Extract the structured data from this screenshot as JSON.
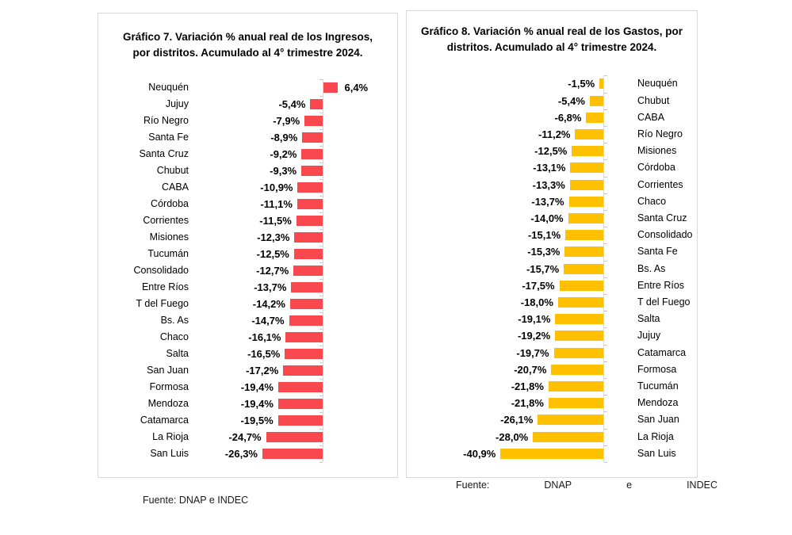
{
  "chart_data": [
    {
      "type": "bar",
      "orientation": "horizontal",
      "title": "Gráfico 7. Variación % anual real de los Ingresos, por distritos. Acumulado al 4° trimestre 2024.",
      "bar_color": "#f9494f",
      "category_side": "left",
      "xlim": [
        -30,
        10
      ],
      "grid": false,
      "legend": "none",
      "categories": [
        "Neuquén",
        "Jujuy",
        "Río Negro",
        "Santa Fe",
        "Santa Cruz",
        "Chubut",
        "CABA",
        "Córdoba",
        "Corrientes",
        "Misiones",
        "Tucumán",
        "Consolidado",
        "Entre Ríos",
        "T del Fuego",
        "Bs. As",
        "Chaco",
        "Salta",
        "San Juan",
        "Formosa",
        "Mendoza",
        "Catamarca",
        "La Rioja",
        "San Luis"
      ],
      "values": [
        6.4,
        -5.4,
        -7.9,
        -8.9,
        -9.2,
        -9.3,
        -10.9,
        -11.1,
        -11.5,
        -12.3,
        -12.5,
        -12.7,
        -13.7,
        -14.2,
        -14.7,
        -16.1,
        -16.5,
        -17.2,
        -19.4,
        -19.4,
        -19.5,
        -24.7,
        -26.3
      ],
      "value_labels": [
        "6,4%",
        "-5,4%",
        "-7,9%",
        "-8,9%",
        "-9,2%",
        "-9,3%",
        "-10,9%",
        "-11,1%",
        "-11,5%",
        "-12,3%",
        "-12,5%",
        "-12,7%",
        "-13,7%",
        "-14,2%",
        "-14,7%",
        "-16,1%",
        "-16,5%",
        "-17,2%",
        "-19,4%",
        "-19,4%",
        "-19,5%",
        "-24,7%",
        "-26,3%"
      ]
    },
    {
      "type": "bar",
      "orientation": "horizontal",
      "title": "Gráfico 8. Variación % anual real de los Gastos, por distritos. Acumulado al 4° trimestre 2024.",
      "bar_color": "#ffc000",
      "category_side": "right",
      "xlim": [
        -45,
        0
      ],
      "grid": false,
      "legend": "none",
      "categories": [
        "Neuquén",
        "Chubut",
        "CABA",
        "Río Negro",
        "Misiones",
        "Córdoba",
        "Corrientes",
        "Chaco",
        "Santa Cruz",
        "Consolidado",
        "Santa Fe",
        "Bs. As",
        "Entre Ríos",
        "T del Fuego",
        "Salta",
        "Jujuy",
        "Catamarca",
        "Formosa",
        "Tucumán",
        "Mendoza",
        "San Juan",
        "La Rioja",
        "San Luis"
      ],
      "values": [
        -1.5,
        -5.4,
        -6.8,
        -11.2,
        -12.5,
        -13.1,
        -13.3,
        -13.7,
        -14.0,
        -15.1,
        -15.3,
        -15.7,
        -17.5,
        -18.0,
        -19.1,
        -19.2,
        -19.7,
        -20.7,
        -21.8,
        -21.8,
        -26.1,
        -28.0,
        -40.9
      ],
      "value_labels": [
        "-1,5%",
        "-5,4%",
        "-6,8%",
        "-11,2%",
        "-12,5%",
        "-13,1%",
        "-13,3%",
        "-13,7%",
        "-14,0%",
        "-15,1%",
        "-15,3%",
        "-15,7%",
        "-17,5%",
        "-18,0%",
        "-19,1%",
        "-19,2%",
        "-19,7%",
        "-20,7%",
        "-21,8%",
        "-21,8%",
        "-26,1%",
        "-28,0%",
        "-40,9%"
      ]
    }
  ],
  "footers": {
    "left": "Fuente: DNAP e INDEC",
    "right_words": [
      "Fuente:",
      "DNAP",
      "e",
      "INDEC"
    ]
  },
  "colors": {
    "ingresos_bar": "#f9494f",
    "gastos_bar": "#ffc000",
    "panel_border": "#d9d9d9",
    "axis_line": "#d9d9d9"
  }
}
